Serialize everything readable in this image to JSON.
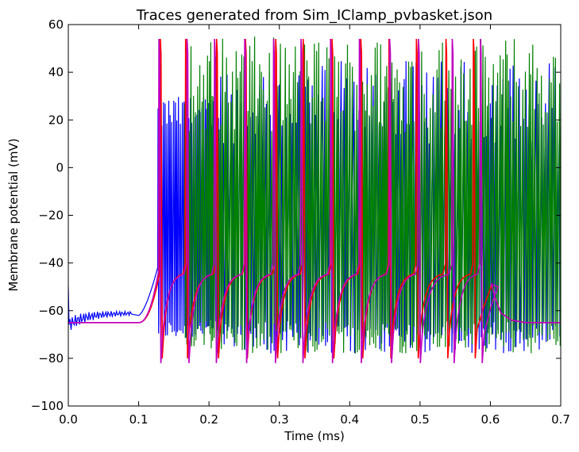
{
  "chart_data": {
    "type": "line",
    "title": "Traces generated from Sim_IClamp_pvbasket.json",
    "xlabel": "Time (ms)",
    "ylabel": "Membrane potential (mV)",
    "xlim": [
      0.0,
      0.7
    ],
    "ylim": [
      -100,
      60
    ],
    "x_ticks": [
      0.0,
      0.1,
      0.2,
      0.3,
      0.4,
      0.5,
      0.6,
      0.7
    ],
    "x_tick_labels": [
      "0.0",
      "0.1",
      "0.2",
      "0.3",
      "0.4",
      "0.5",
      "0.6",
      "0.7"
    ],
    "y_ticks": [
      -100,
      -80,
      -60,
      -40,
      -20,
      0,
      20,
      40,
      60
    ],
    "y_tick_labels": [
      "−100",
      "−80",
      "−60",
      "−40",
      "−20",
      "0",
      "20",
      "40",
      "60"
    ],
    "grid": false,
    "legend": "none",
    "series": [
      {
        "color": "#0000ff",
        "baseline_mv": -61,
        "stim_start_ms": 0.1,
        "spike_peak_mv": 25,
        "spike_trough_mv": -72,
        "dense_spiking_until_ms": 0.21,
        "sparse_spike_times_ms": [
          0.25,
          0.29,
          0.33,
          0.37,
          0.42,
          0.46,
          0.5,
          0.545,
          0.585,
          0.62,
          0.66,
          0.7
        ]
      },
      {
        "color": "#008000",
        "start_ms": 0.165,
        "spike_peak_mv": 45,
        "spike_trough_mv": -78,
        "dense_spiking": true
      },
      {
        "color": "#ff0000",
        "baseline_mv": -65,
        "stim_start_ms": 0.1,
        "spike_times_ms": [
          0.13,
          0.166,
          0.21,
          0.251,
          0.294,
          0.333,
          0.374,
          0.415,
          0.455,
          0.494,
          0.536,
          0.575
        ],
        "spike_peak_mv": 54,
        "trough_mv": -80,
        "end_mv": -65
      },
      {
        "color": "#bf00bf",
        "baseline_mv": -65,
        "stim_start_ms": 0.1,
        "spike_times_ms": [
          0.128,
          0.168,
          0.207,
          0.25,
          0.291,
          0.33,
          0.372,
          0.413,
          0.456,
          0.497,
          0.545,
          0.585
        ],
        "spike_peak_mv": 54,
        "trough_mv": -82,
        "end_mv": -65
      }
    ]
  }
}
